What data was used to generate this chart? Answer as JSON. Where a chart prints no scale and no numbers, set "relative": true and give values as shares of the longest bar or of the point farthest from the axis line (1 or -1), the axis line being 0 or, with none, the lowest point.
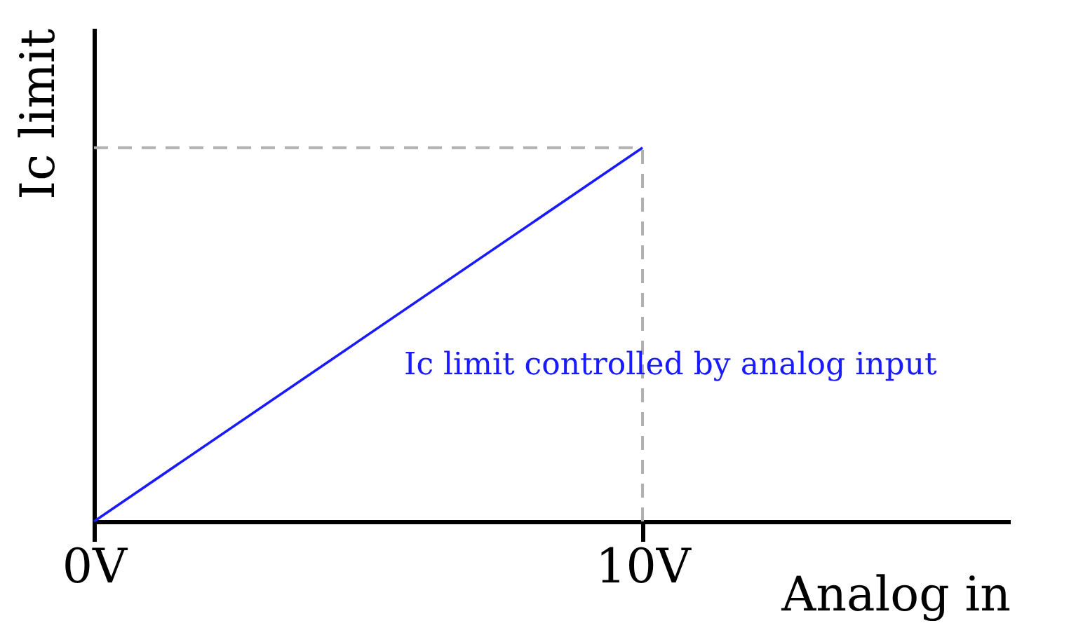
{
  "chart_data": {
    "type": "line",
    "xlabel": "Analog in",
    "ylabel": "Ic limit",
    "relative": true,
    "x": [
      0,
      10
    ],
    "series": [
      {
        "color": "#1a1aff",
        "values": [
          0,
          1
        ]
      }
    ],
    "xlim": [
      0,
      16.7
    ],
    "xticks": [
      {
        "value": 0,
        "label": "0V"
      },
      {
        "value": 10,
        "label": "10V"
      }
    ],
    "ref_lines": [
      {
        "axis": "x",
        "value": 10,
        "color": "#b0b0b0",
        "line_style": "dashed"
      },
      {
        "axis": "y",
        "value": 1,
        "color": "#b0b0b0",
        "line_style": "dashed"
      }
    ],
    "annotations": [
      "Ic limit controlled by analog input"
    ],
    "grid": false,
    "line_style": "solid",
    "marker": "none"
  }
}
